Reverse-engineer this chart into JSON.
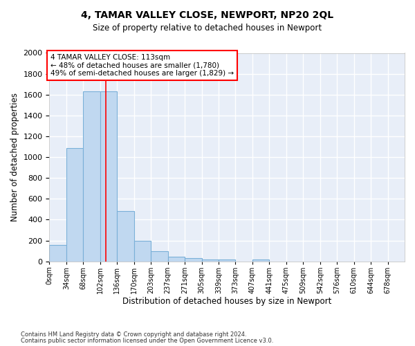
{
  "title": "4, TAMAR VALLEY CLOSE, NEWPORT, NP20 2QL",
  "subtitle": "Size of property relative to detached houses in Newport",
  "xlabel": "Distribution of detached houses by size in Newport",
  "ylabel": "Number of detached properties",
  "bar_color": "#c0d8f0",
  "bar_edge_color": "#7ab0d8",
  "bg_color": "#e8eef8",
  "grid_color": "#ffffff",
  "categories": [
    "0sqm",
    "34sqm",
    "68sqm",
    "102sqm",
    "136sqm",
    "170sqm",
    "203sqm",
    "237sqm",
    "271sqm",
    "305sqm",
    "339sqm",
    "373sqm",
    "407sqm",
    "441sqm",
    "475sqm",
    "509sqm",
    "542sqm",
    "576sqm",
    "610sqm",
    "644sqm",
    "678sqm"
  ],
  "values": [
    160,
    1090,
    1630,
    1630,
    480,
    200,
    100,
    45,
    30,
    20,
    20,
    0,
    20,
    0,
    0,
    0,
    0,
    0,
    0,
    0,
    0
  ],
  "property_label": "4 TAMAR VALLEY CLOSE: 113sqm",
  "annotation_line1": "← 48% of detached houses are smaller (1,780)",
  "annotation_line2": "49% of semi-detached houses are larger (1,829) →",
  "vline_sqm": 113,
  "ylim": [
    0,
    2000
  ],
  "yticks": [
    0,
    200,
    400,
    600,
    800,
    1000,
    1200,
    1400,
    1600,
    1800,
    2000
  ],
  "footnote1": "Contains HM Land Registry data © Crown copyright and database right 2024.",
  "footnote2": "Contains public sector information licensed under the Open Government Licence v3.0.",
  "bin_width": 34,
  "n_bins": 21
}
